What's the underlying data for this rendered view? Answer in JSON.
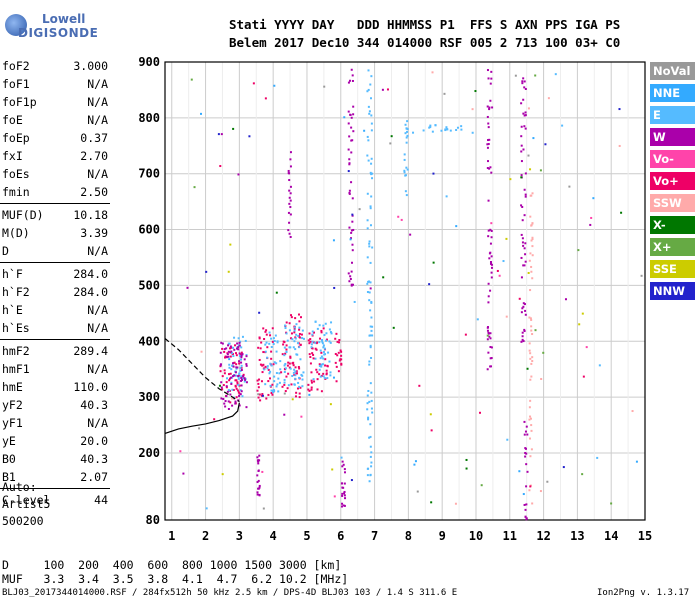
{
  "logo": {
    "line1": "Lowell",
    "line2": "DIGISONDE"
  },
  "header": {
    "row1": "Stati YYYY DAY   DDD HHMMSS P1  FFS S AXN PPS IGA PS",
    "row2": "Belem 2017 Dec10 344 014000 RSF 005 2 713 100 03+ C0"
  },
  "params": [
    {
      "name": "foF2",
      "value": "3.000"
    },
    {
      "name": "foF1",
      "value": "N/A"
    },
    {
      "name": "foF1p",
      "value": "N/A"
    },
    {
      "name": "foE",
      "value": "N/A"
    },
    {
      "name": "foEp",
      "value": "0.37"
    },
    {
      "name": "fxI",
      "value": "2.70"
    },
    {
      "name": "foEs",
      "value": "N/A"
    },
    {
      "name": "fmin",
      "value": "2.50"
    },
    {
      "name": "MUF(D)",
      "value": "10.18"
    },
    {
      "name": "M(D)",
      "value": "3.39"
    },
    {
      "name": "D",
      "value": "N/A"
    },
    {
      "name": "h`F",
      "value": "284.0"
    },
    {
      "name": "h`F2",
      "value": "284.0"
    },
    {
      "name": "h`E",
      "value": "N/A"
    },
    {
      "name": "h`Es",
      "value": "N/A"
    },
    {
      "name": "hmF2",
      "value": "289.4"
    },
    {
      "name": "hmF1",
      "value": "N/A"
    },
    {
      "name": "hmE",
      "value": "110.0"
    },
    {
      "name": "yF2",
      "value": "40.3"
    },
    {
      "name": "yF1",
      "value": "N/A"
    },
    {
      "name": "yE",
      "value": "20.0"
    },
    {
      "name": "B0",
      "value": "40.3"
    },
    {
      "name": "B1",
      "value": "2.07"
    },
    {
      "name": "C-level",
      "value": "44"
    }
  ],
  "auto": {
    "line1": "Auto:",
    "line2": "Artist5",
    "line3": "500200"
  },
  "legend": [
    {
      "label": "NoVal",
      "color": "#999999"
    },
    {
      "label": "NNE",
      "color": "#33aaff"
    },
    {
      "label": "E",
      "color": "#55bbff"
    },
    {
      "label": "W",
      "color": "#aa00aa"
    },
    {
      "label": "Vo-",
      "color": "#ff44aa"
    },
    {
      "label": "Vo+",
      "color": "#ee0066"
    },
    {
      "label": "SSW",
      "color": "#ffaaaa"
    },
    {
      "label": "X-",
      "color": "#007700"
    },
    {
      "label": "X+",
      "color": "#66aa44"
    },
    {
      "label": "SSE",
      "color": "#cccc00"
    },
    {
      "label": "NNW",
      "color": "#2222cc"
    }
  ],
  "dmuf": {
    "d_row": "D     100  200  400  600  800 1000 1500 3000 [km]",
    "muf_row": "MUF   3.3  3.4  3.5  3.8  4.1  4.7  6.2 10.2 [MHz]"
  },
  "footer": {
    "left": "BLJ03_2017344014000.RSF / 284fx512h 50 kHz 2.5 km / DPS-4D BLJ03 103 / 1.4 S 311.6 E",
    "right": "Ion2Png v. 1.3.17"
  },
  "chart_data": {
    "type": "scatter",
    "xlim": [
      0.8,
      15
    ],
    "ylim": [
      80,
      900
    ],
    "xticks": [
      1,
      2,
      3,
      4,
      5,
      6,
      7,
      8,
      9,
      10,
      11,
      12,
      13,
      14,
      15
    ],
    "yticks": [
      80,
      200,
      300,
      400,
      500,
      600,
      700,
      800,
      900
    ],
    "grid": true,
    "curves": [
      {
        "name": "profile",
        "style": "solid",
        "x": [
          0.8,
          1.2,
          1.6,
          2.0,
          2.4,
          2.8,
          2.95,
          3.0
        ],
        "y": [
          235,
          243,
          248,
          252,
          258,
          266,
          275,
          290
        ]
      },
      {
        "name": "fit",
        "style": "dashed",
        "x": [
          0.8,
          1.2,
          1.6,
          2.0,
          2.4,
          2.8,
          3.0
        ],
        "y": [
          405,
          385,
          360,
          335,
          315,
          300,
          292
        ]
      }
    ],
    "traces": [
      {
        "color": "#ee0066",
        "x": [
          2.4,
          3.1
        ],
        "y": [
          290,
          395
        ]
      },
      {
        "color": "#55bbff",
        "x": [
          2.6,
          3.2
        ],
        "y": [
          300,
          410
        ]
      },
      {
        "color": "#aa00aa",
        "x": [
          2.4,
          3.2
        ],
        "y": [
          280,
          400
        ]
      },
      {
        "color": "#ee0066",
        "x": [
          3.5,
          4.0
        ],
        "y": [
          295,
          430
        ]
      },
      {
        "color": "#55bbff",
        "x": [
          3.7,
          4.2
        ],
        "y": [
          310,
          420
        ]
      },
      {
        "color": "#ee0066",
        "x": [
          4.2,
          4.8
        ],
        "y": [
          300,
          450
        ]
      },
      {
        "color": "#55bbff",
        "x": [
          4.3,
          4.9
        ],
        "y": [
          320,
          440
        ]
      },
      {
        "color": "#ee0066",
        "x": [
          5.0,
          5.6
        ],
        "y": [
          310,
          430
        ]
      },
      {
        "color": "#55bbff",
        "x": [
          5.1,
          5.7
        ],
        "y": [
          330,
          440
        ]
      },
      {
        "color": "#ee0066",
        "x": [
          5.8,
          6.0
        ],
        "y": [
          330,
          420
        ]
      },
      {
        "color": "#aa00aa",
        "x": [
          3.5,
          3.6
        ],
        "y": [
          120,
          200
        ]
      },
      {
        "color": "#aa00aa",
        "x": [
          4.4,
          4.5
        ],
        "y": [
          580,
          750
        ]
      },
      {
        "color": "#aa00aa",
        "x": [
          6.0,
          6.1
        ],
        "y": [
          100,
          190
        ]
      },
      {
        "color": "#aa00aa",
        "x": [
          6.2,
          6.35
        ],
        "y": [
          500,
          900
        ]
      },
      {
        "color": "#55bbff",
        "x": [
          6.75,
          6.9
        ],
        "y": [
          150,
          890
        ]
      },
      {
        "color": "#55bbff",
        "x": [
          7.85,
          7.95
        ],
        "y": [
          660,
          810
        ]
      },
      {
        "color": "#55bbff",
        "x": [
          8.1,
          9.9
        ],
        "y": [
          775,
          790
        ]
      },
      {
        "color": "#aa00aa",
        "x": [
          10.3,
          10.45
        ],
        "y": [
          350,
          890
        ]
      },
      {
        "color": "#aa00aa",
        "x": [
          11.3,
          11.45
        ],
        "y": [
          400,
          890
        ]
      },
      {
        "color": "#aa00aa",
        "x": [
          11.4,
          11.5
        ],
        "y": [
          80,
          260
        ]
      },
      {
        "color": "#ffaaaa",
        "x": [
          11.55,
          11.65
        ],
        "y": [
          80,
          700
        ]
      }
    ]
  }
}
